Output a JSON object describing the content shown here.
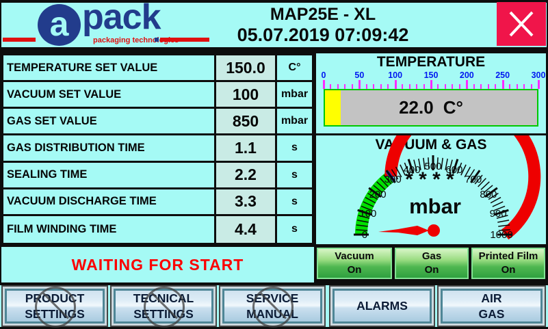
{
  "header": {
    "logo": {
      "brand_initial": "a",
      "brand_rest": "pack",
      "tagline": "packaging technologies"
    },
    "title": "MAP25E - XL",
    "datetime": "05.07.2019 07:09:42"
  },
  "parameters": {
    "rows": [
      {
        "label": "TEMPERATURE SET VALUE",
        "value": "150.0",
        "unit": "C°"
      },
      {
        "label": "VACUUM SET VALUE",
        "value": "100",
        "unit": "mbar"
      },
      {
        "label": "GAS SET VALUE",
        "value": "850",
        "unit": "mbar"
      },
      {
        "label": "GAS DISTRIBUTION TIME",
        "value": "1.1",
        "unit": "s"
      },
      {
        "label": "SEALING TIME",
        "value": "2.2",
        "unit": "s"
      },
      {
        "label": "VACUUM DISCHARGE TIME",
        "value": "3.3",
        "unit": "s"
      },
      {
        "label": "FILM WINDING TIME",
        "value": "4.4",
        "unit": "s"
      }
    ]
  },
  "status_message": "WAITING FOR START",
  "temperature_gauge": {
    "title": "TEMPERATURE",
    "value": 22.0,
    "value_text": "22.0",
    "unit": "C°",
    "min": 0,
    "max": 300,
    "tick_labels": [
      0,
      50,
      100,
      150,
      200,
      250,
      300
    ],
    "minor_step": 10,
    "major_step": 50,
    "colors": {
      "fill": "#FFFF00",
      "track": "#C3C3C3",
      "border": "#00C800",
      "tick": "#FF29FF",
      "label": "#0018F0"
    }
  },
  "vacuum_gauge": {
    "title": "VACUUM & GAS",
    "display_value": "* * * *",
    "unit": "mbar",
    "min": 0,
    "max": 1000,
    "tick_labels": [
      0,
      100,
      200,
      300,
      400,
      500,
      600,
      700,
      800,
      900,
      1000
    ],
    "minor_step": 20,
    "major_step": 100,
    "green_until": 300,
    "marker_value": 300,
    "needle_value": 0,
    "colors": {
      "green": "#00DF00",
      "red": "#EE0000",
      "marker": "#2B35C8",
      "needle": "#EE0000",
      "tick": "#0A0A0A"
    }
  },
  "indicators": [
    {
      "name": "Vacuum",
      "state": "On"
    },
    {
      "name": "Gas",
      "state": "On"
    },
    {
      "name": "Printed Film",
      "state": "On"
    }
  ],
  "nav_buttons": [
    {
      "line1": "PRODUCT",
      "line2": "SETTINGS",
      "disabled": true
    },
    {
      "line1": "TECNICAL",
      "line2": "SETTINGS",
      "disabled": true
    },
    {
      "line1": "SERVICE",
      "line2": "MANUAL",
      "disabled": true
    },
    {
      "line1": "ALARMS",
      "line2": "",
      "disabled": false
    },
    {
      "line1": "AIR",
      "line2": "GAS",
      "disabled": false
    }
  ]
}
